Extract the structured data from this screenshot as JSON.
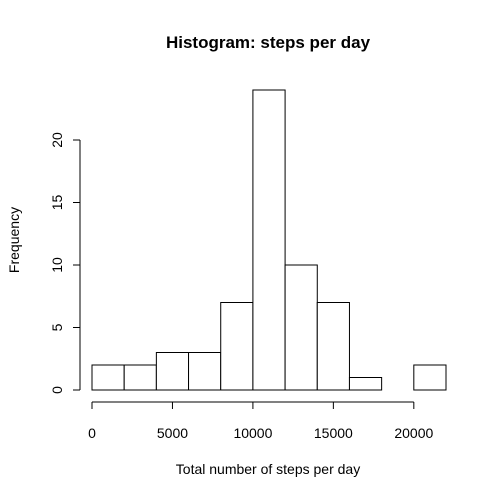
{
  "chart_data": {
    "type": "bar",
    "title": "Histogram: steps per day",
    "xlabel": "Total number of steps per day",
    "ylabel": "Frequency",
    "bins": [
      {
        "start": 0,
        "end": 2000,
        "count": 2
      },
      {
        "start": 2000,
        "end": 4000,
        "count": 2
      },
      {
        "start": 4000,
        "end": 6000,
        "count": 3
      },
      {
        "start": 6000,
        "end": 8000,
        "count": 3
      },
      {
        "start": 8000,
        "end": 10000,
        "count": 7
      },
      {
        "start": 10000,
        "end": 12000,
        "count": 24
      },
      {
        "start": 12000,
        "end": 14000,
        "count": 10
      },
      {
        "start": 14000,
        "end": 16000,
        "count": 7
      },
      {
        "start": 16000,
        "end": 18000,
        "count": 1
      },
      {
        "start": 18000,
        "end": 20000,
        "count": 0
      },
      {
        "start": 20000,
        "end": 22000,
        "count": 2
      }
    ],
    "x_ticks": [
      {
        "value": 0,
        "label": "0"
      },
      {
        "value": 5000,
        "label": "5000"
      },
      {
        "value": 10000,
        "label": "10000"
      },
      {
        "value": 15000,
        "label": "15000"
      },
      {
        "value": 20000,
        "label": "20000"
      }
    ],
    "y_ticks": [
      {
        "value": 0,
        "label": "0"
      },
      {
        "value": 5,
        "label": "5"
      },
      {
        "value": 10,
        "label": "10"
      },
      {
        "value": 15,
        "label": "15"
      },
      {
        "value": 20,
        "label": "20"
      }
    ],
    "xlim": [
      0,
      22000
    ],
    "ylim": [
      0,
      24
    ],
    "grid": false,
    "bar_fill": "#ffffff",
    "bar_stroke": "#000000"
  }
}
